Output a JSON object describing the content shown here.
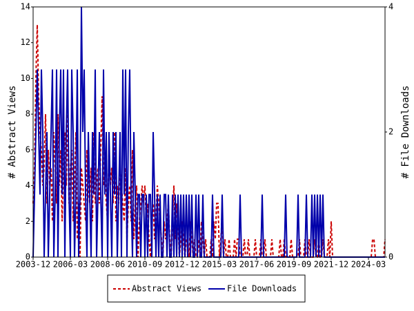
{
  "chart_data": {
    "type": "line",
    "ylabel": "# Abstract Views",
    "y2label": "# File Downloads",
    "ylim": [
      0,
      14
    ],
    "yticks": [
      0,
      2,
      4,
      6,
      8,
      10,
      12,
      14
    ],
    "y2lim": [
      0,
      4
    ],
    "y2ticks": [
      0,
      2,
      4
    ],
    "legend": "bottom",
    "categories": [
      "2003-12",
      null,
      null,
      null,
      null,
      null,
      null,
      null,
      null,
      null,
      null,
      null,
      null,
      null,
      null,
      null,
      null,
      null,
      null,
      null,
      null,
      null,
      null,
      null,
      null,
      null,
      null,
      "2006-03",
      null,
      null,
      null,
      null,
      null,
      null,
      null,
      null,
      null,
      null,
      null,
      null,
      null,
      null,
      null,
      null,
      null,
      null,
      null,
      null,
      null,
      null,
      null,
      null,
      null,
      null,
      "2008-06",
      null,
      null,
      null,
      null,
      null,
      null,
      null,
      null,
      null,
      null,
      null,
      null,
      null,
      null,
      null,
      null,
      null,
      null,
      null,
      null,
      null,
      null,
      null,
      null,
      null,
      null,
      "2010-09",
      null,
      null,
      null,
      null,
      null,
      null,
      null,
      null,
      null,
      null,
      null,
      null,
      null,
      null,
      null,
      null,
      null,
      null,
      null,
      null,
      null,
      null,
      null,
      null,
      null,
      null,
      "2012-12",
      null,
      null,
      null,
      null,
      null,
      null,
      null,
      null,
      null,
      null,
      null,
      null,
      null,
      null,
      null,
      null,
      null,
      null,
      null,
      null,
      null,
      null,
      null,
      null,
      null,
      null,
      "2015-03",
      null,
      null,
      null,
      null,
      null,
      null,
      null,
      null,
      null,
      null,
      null,
      null,
      null,
      null,
      null,
      null,
      null,
      null,
      null,
      null,
      null,
      null,
      null,
      null,
      null,
      null,
      "2017-06",
      null,
      null,
      null,
      null,
      null,
      null,
      null,
      null,
      null,
      null,
      null,
      null,
      null,
      null,
      null,
      null,
      null,
      null,
      null,
      null,
      null,
      null,
      null,
      null,
      null,
      null,
      "2019-09",
      null,
      null,
      null,
      null,
      null,
      null,
      null,
      null,
      null,
      null,
      null,
      null,
      null,
      null,
      null,
      null,
      null,
      null,
      null,
      null,
      null,
      null,
      null,
      null,
      null,
      null,
      "2021-12",
      null,
      null,
      null,
      null,
      null,
      null,
      null,
      null,
      null,
      null,
      null,
      null,
      null,
      null,
      null,
      null,
      null,
      null,
      null,
      null,
      null,
      null,
      null,
      null,
      null,
      null,
      "2024-03",
      null,
      null,
      null,
      null,
      null,
      null,
      null,
      null,
      null,
      null,
      null,
      null
    ],
    "series": [
      {
        "name": "Abstract Views",
        "color": "#cc0000",
        "dashed": true,
        "values": [
          3,
          5,
          10,
          13,
          9,
          7,
          6,
          4,
          5,
          8,
          3,
          6,
          4,
          5,
          2,
          7,
          5,
          3,
          8,
          4,
          6,
          2,
          5,
          7,
          4,
          8,
          3,
          5,
          6,
          2,
          4,
          7,
          1,
          3,
          0,
          5,
          4,
          3,
          2,
          6,
          4,
          3,
          5,
          2,
          7,
          3,
          4,
          5,
          3,
          6,
          9,
          4,
          5,
          3,
          2,
          6,
          4,
          5,
          3,
          7,
          2,
          4,
          3,
          5,
          4,
          3,
          2,
          5,
          1,
          3,
          4,
          2,
          6,
          1,
          3,
          4,
          0,
          2,
          3,
          4,
          3,
          4,
          2,
          3,
          1,
          0,
          2,
          3,
          1,
          2,
          4,
          3,
          2,
          1,
          0,
          2,
          1,
          2,
          3,
          1,
          0,
          2,
          4,
          1,
          3,
          2,
          0,
          1,
          2,
          1,
          0,
          1,
          1,
          0,
          2,
          1,
          0,
          1,
          0,
          0,
          1,
          0,
          2,
          1,
          0,
          1,
          0,
          0,
          0,
          1,
          0,
          2,
          1,
          3,
          3,
          0,
          1,
          2,
          0,
          1,
          0,
          0,
          1,
          0,
          0,
          0,
          1,
          0,
          1,
          1,
          0,
          0,
          0,
          1,
          0,
          0,
          1,
          0,
          0,
          0,
          0,
          1,
          0,
          0,
          0,
          1,
          0,
          0,
          1,
          0,
          0,
          0,
          0,
          1,
          0,
          0,
          0,
          0,
          0,
          1,
          0,
          0,
          1,
          0,
          0,
          0,
          0,
          1,
          0,
          0,
          0,
          0,
          0,
          1,
          0,
          0,
          0,
          1,
          0,
          0,
          1,
          0,
          0,
          0,
          1,
          0,
          0,
          1,
          0,
          0,
          1,
          0,
          0,
          0,
          1,
          0,
          2,
          0,
          0,
          0,
          0,
          0,
          0,
          0,
          0,
          0,
          0,
          0,
          0,
          0,
          0,
          0,
          0,
          0,
          0,
          0,
          0,
          0,
          0,
          0,
          0,
          0,
          0,
          0,
          0,
          0,
          1,
          1,
          0,
          0,
          0,
          0,
          0,
          0,
          0,
          1
        ]
      },
      {
        "name": "File Downloads",
        "color": "#0000aa",
        "axis": "y2",
        "values": [
          0,
          1,
          2,
          3,
          2,
          1,
          3,
          2,
          0,
          1,
          2,
          0,
          1,
          2,
          3,
          0,
          1,
          3,
          0,
          2,
          3,
          1,
          3,
          0,
          2,
          3,
          1,
          0,
          3,
          2,
          0,
          1,
          3,
          0,
          1,
          4,
          2,
          3,
          1,
          0,
          2,
          1,
          0,
          2,
          1,
          3,
          0,
          1,
          2,
          1,
          0,
          3,
          1,
          2,
          0,
          2,
          1,
          0,
          2,
          1,
          2,
          0,
          1,
          2,
          0,
          3,
          1,
          3,
          0,
          2,
          3,
          1,
          0,
          2,
          1,
          0,
          1,
          1,
          0,
          1,
          1,
          0,
          1,
          0,
          1,
          1,
          0,
          2,
          1,
          0,
          1,
          0,
          1,
          0,
          0,
          1,
          1,
          0,
          1,
          0,
          0,
          1,
          0,
          1,
          0,
          1,
          0,
          1,
          0,
          1,
          0,
          1,
          0,
          1,
          0,
          1,
          0,
          0,
          1,
          0,
          1,
          0,
          0,
          1,
          0,
          0,
          0,
          0,
          0,
          0,
          1,
          0,
          0,
          0,
          0,
          0,
          0,
          1,
          0,
          0,
          0,
          0,
          0,
          0,
          0,
          0,
          0,
          0,
          0,
          0,
          1,
          0,
          0,
          0,
          0,
          0,
          0,
          0,
          0,
          0,
          0,
          0,
          0,
          0,
          0,
          0,
          1,
          0,
          0,
          0,
          0,
          0,
          0,
          0,
          0,
          0,
          0,
          0,
          0,
          0,
          0,
          0,
          0,
          1,
          0,
          0,
          0,
          0,
          0,
          0,
          0,
          0,
          1,
          0,
          0,
          0,
          0,
          0,
          1,
          0,
          0,
          0,
          1,
          0,
          1,
          0,
          1,
          0,
          1,
          0,
          1,
          0,
          0,
          0,
          0,
          0,
          0,
          0,
          0,
          0,
          0,
          0,
          0,
          0,
          0,
          0,
          0,
          0,
          0,
          0,
          0,
          0,
          0,
          0,
          0,
          0,
          0,
          0,
          0,
          0,
          0,
          0,
          0,
          0,
          0,
          0,
          0,
          0,
          0,
          0,
          0,
          0,
          0,
          0,
          0,
          0
        ]
      }
    ]
  }
}
